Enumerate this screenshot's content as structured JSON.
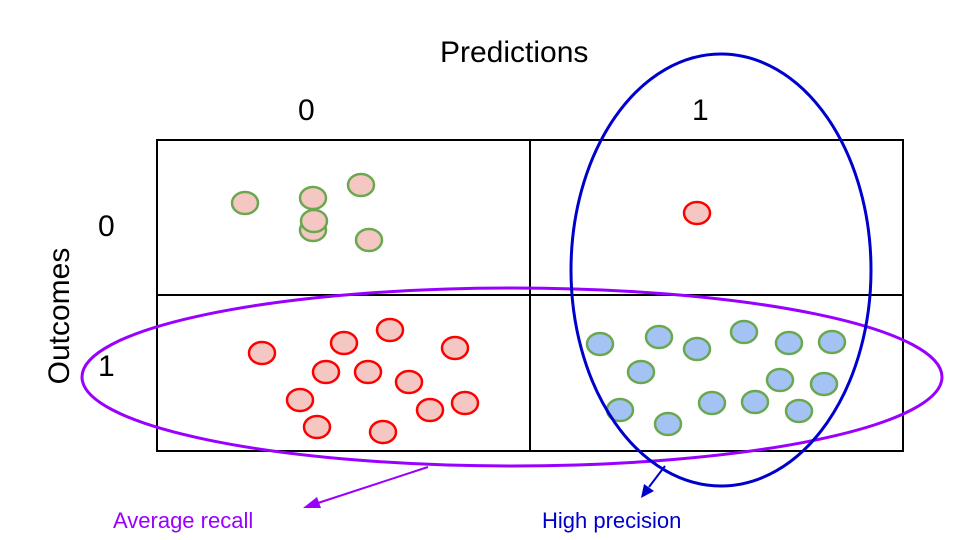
{
  "title": "Predictions",
  "row_axis_label": "Outcomes",
  "columns": [
    {
      "label": "0"
    },
    {
      "label": "1"
    }
  ],
  "rows": [
    {
      "label": "0"
    },
    {
      "label": "1"
    }
  ],
  "cells": {
    "outcome0_pred0": {
      "points": 6,
      "fill": "#f4c7c3",
      "stroke": "#6aa84f"
    },
    "outcome0_pred1": {
      "points": 1,
      "fill": "#f4c7c3",
      "stroke": "#ff0000"
    },
    "outcome1_pred0": {
      "points": 12,
      "fill": "#f4c7c3",
      "stroke": "#ff0000"
    },
    "outcome1_pred1": {
      "points": 14,
      "fill": "#a4c2f4",
      "stroke": "#6aa84f"
    }
  },
  "annotations": {
    "recall": {
      "text": "Average recall",
      "color": "#9900ff"
    },
    "precision": {
      "text": "High precision",
      "color": "#0000cc"
    }
  }
}
